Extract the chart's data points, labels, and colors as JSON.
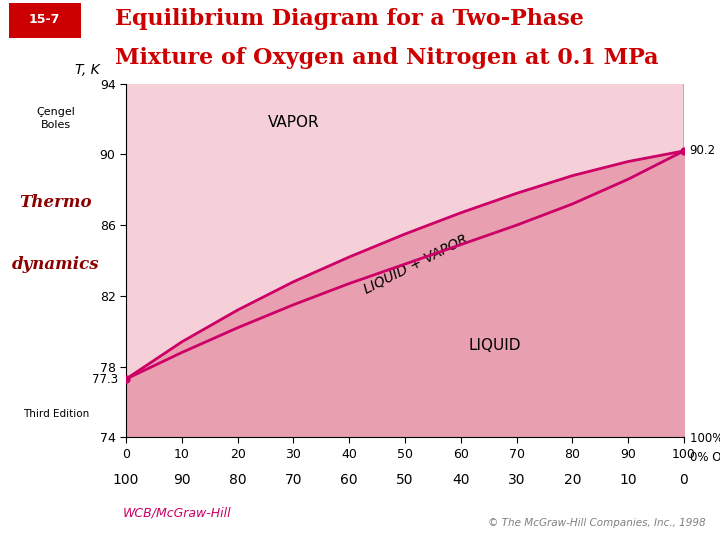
{
  "title_line1": "Equilibrium Diagram for a Two-Phase",
  "title_line2": "Mixture of Oxygen and Nitrogen at 0.1 MPa",
  "slide_number": "15-7",
  "title_color": "#cc0000",
  "ylabel": "T, K",
  "xlim": [
    0,
    100
  ],
  "ylim": [
    74,
    94
  ],
  "yticks": [
    74,
    78,
    82,
    86,
    90,
    94
  ],
  "xticks_n2": [
    0,
    10,
    20,
    30,
    40,
    50,
    60,
    70,
    80,
    90,
    100
  ],
  "xticks_o2": [
    100,
    90,
    80,
    70,
    60,
    50,
    40,
    30,
    20,
    10,
    0
  ],
  "dew_line_x": [
    0,
    10,
    20,
    30,
    40,
    50,
    60,
    70,
    80,
    90,
    100
  ],
  "dew_line_y": [
    77.3,
    79.4,
    81.2,
    82.8,
    84.2,
    85.5,
    86.7,
    87.8,
    88.8,
    89.6,
    90.2
  ],
  "bubble_line_x": [
    0,
    10,
    20,
    30,
    40,
    50,
    60,
    70,
    80,
    90,
    100
  ],
  "bubble_line_y": [
    77.3,
    78.8,
    80.2,
    81.5,
    82.7,
    83.8,
    84.9,
    86.0,
    87.2,
    88.6,
    90.2
  ],
  "line_color": "#cc0066",
  "vapor_color": "#f5d0d8",
  "two_phase_color": "#e8a0b0",
  "liquid_color": "#e8a0b0",
  "label_vapor": "VAPOR",
  "label_two_phase": "LIQUID + VAPOR",
  "label_liquid": "LIQUID",
  "footer_left": "WCB/McGraw-Hill",
  "footer_right": "© The McGraw-Hill Companies, Inc., 1998"
}
